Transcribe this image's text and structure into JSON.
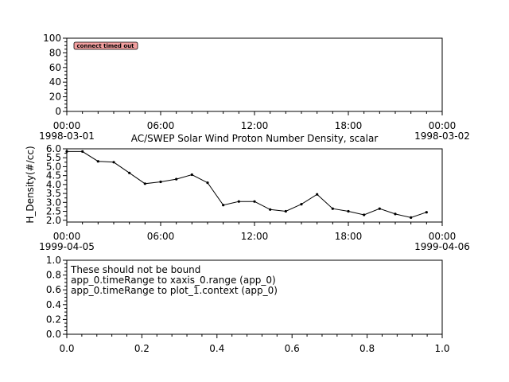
{
  "chart_data": [
    {
      "type": "line",
      "ylim": [
        0,
        100
      ],
      "yticks": [
        "100",
        "80",
        "60",
        "40",
        "20",
        "0"
      ],
      "ytick_values": [
        100,
        80,
        60,
        40,
        20,
        0
      ],
      "xticks_time": [
        "00:00",
        "06:00",
        "12:00",
        "18:00",
        "00:00"
      ],
      "xtick_dates": [
        "1998-03-01",
        "",
        "",
        "",
        "1998-03-02"
      ],
      "xlim_hours": [
        0,
        24
      ],
      "grid": false,
      "badge": "connect timed out",
      "series": []
    },
    {
      "type": "line",
      "title": "AC/SWEP  Solar Wind Proton Number Density, scalar",
      "ylabel": "H_Density(#/cc)",
      "ylim": [
        1.9,
        6.0
      ],
      "yticks": [
        "6.0",
        "5.5",
        "5.0",
        "4.5",
        "4.0",
        "3.5",
        "3.0",
        "2.5",
        "2.0"
      ],
      "ytick_values": [
        6.0,
        5.5,
        5.0,
        4.5,
        4.0,
        3.5,
        3.0,
        2.5,
        2.0
      ],
      "xticks_time": [
        "00:00",
        "06:00",
        "12:00",
        "18:00",
        "00:00"
      ],
      "xtick_dates": [
        "1999-04-05",
        "",
        "",
        "",
        "1999-04-06"
      ],
      "xlim_hours": [
        0,
        24
      ],
      "grid": false,
      "series": [
        {
          "x": [
            0,
            1,
            2,
            3,
            4,
            5,
            6,
            7,
            8,
            9,
            10,
            11,
            12,
            13,
            14,
            15,
            16,
            17,
            18,
            19,
            20,
            21,
            22,
            23
          ],
          "values": [
            5.85,
            5.85,
            5.3,
            5.25,
            4.65,
            4.05,
            4.15,
            4.3,
            4.55,
            4.1,
            2.85,
            3.05,
            3.05,
            2.6,
            2.5,
            2.9,
            3.45,
            2.65,
            2.5,
            2.3,
            2.65,
            2.35,
            2.15,
            2.45
          ]
        }
      ]
    },
    {
      "type": "line",
      "xlim": [
        0,
        1
      ],
      "ylim": [
        0,
        1
      ],
      "yticks": [
        "1.0",
        "0.8",
        "0.6",
        "0.4",
        "0.2",
        "0.0"
      ],
      "ytick_values": [
        1.0,
        0.8,
        0.6,
        0.4,
        0.2,
        0.0
      ],
      "xticks": [
        "0.0",
        "0.2",
        "0.4",
        "0.6",
        "0.8",
        "1.0"
      ],
      "xtick_values": [
        0.0,
        0.2,
        0.4,
        0.6,
        0.8,
        1.0
      ],
      "grid": false,
      "annotations": [
        "These should not be bound",
        "app_0.timeRange to xaxis_0.range  (app_0)",
        "app_0.timeRange to plot_1.context  (app_0)"
      ],
      "series": []
    }
  ],
  "colors": {
    "badge_fill": "#f4a0a0",
    "line": "#000000",
    "axis": "#000000"
  }
}
